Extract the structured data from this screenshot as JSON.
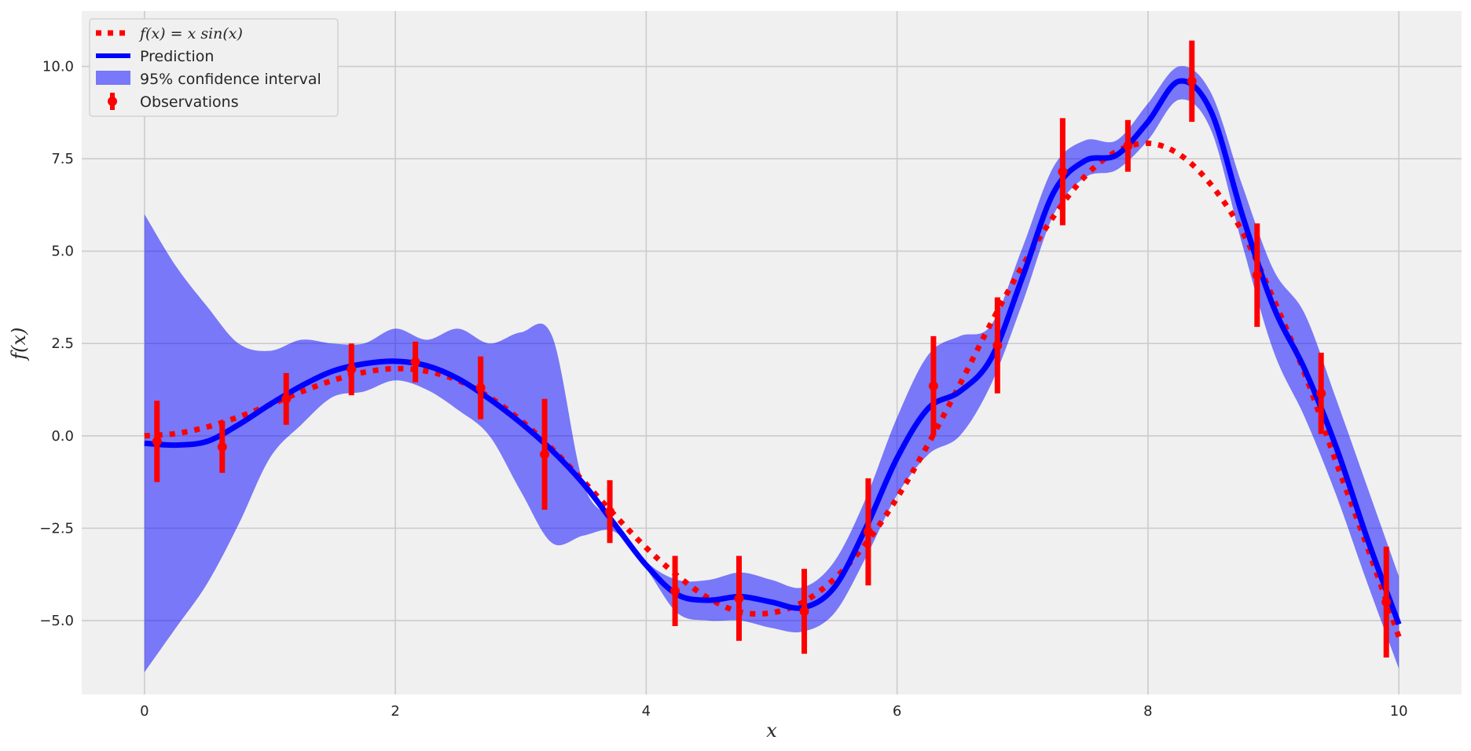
{
  "chart_data": {
    "type": "line",
    "xlabel": "x",
    "ylabel": "f(x)",
    "xlim": [
      -0.5,
      10.5
    ],
    "ylim": [
      -7.0,
      11.5
    ],
    "xticks": [
      0,
      2,
      4,
      6,
      8,
      10
    ],
    "xtick_labels": [
      "0",
      "2",
      "4",
      "6",
      "8",
      "10"
    ],
    "yticks": [
      -5.0,
      -2.5,
      0.0,
      2.5,
      5.0,
      7.5,
      10.0
    ],
    "ytick_labels": [
      "−5.0",
      "−2.5",
      "0.0",
      "2.5",
      "5.0",
      "7.5",
      "10.0"
    ],
    "grid": true,
    "legend_position": "top-left",
    "colors": {
      "background": "#f0f0f0",
      "grid": "#cbcbcb",
      "true_function": "#ff0000",
      "prediction": "#0000ff",
      "confidence_fill": "#0000ff",
      "observations": "#ff0000"
    },
    "series": [
      {
        "name": "f(x) = x sin(x)",
        "legend_label": "f(x) = x sin(x)",
        "kind": "dotted-line",
        "x": [
          0.0,
          0.25,
          0.5,
          0.75,
          1.0,
          1.25,
          1.5,
          1.75,
          2.0,
          2.25,
          2.5,
          2.75,
          3.0,
          3.25,
          3.5,
          3.75,
          4.0,
          4.25,
          4.5,
          4.75,
          5.0,
          5.25,
          5.5,
          5.75,
          6.0,
          6.25,
          6.5,
          6.75,
          7.0,
          7.25,
          7.5,
          7.75,
          8.0,
          8.25,
          8.5,
          8.75,
          9.0,
          9.25,
          9.5,
          9.75,
          10.0
        ],
        "y": [
          0.0,
          0.06,
          0.24,
          0.51,
          0.84,
          1.19,
          1.5,
          1.72,
          1.82,
          1.75,
          1.5,
          1.05,
          0.42,
          -0.35,
          -1.23,
          -2.15,
          -3.03,
          -3.79,
          -4.4,
          -4.77,
          -4.79,
          -4.5,
          -3.87,
          -2.92,
          -1.68,
          -0.21,
          1.39,
          3.06,
          4.6,
          5.95,
          7.03,
          7.7,
          7.92,
          7.62,
          6.81,
          5.54,
          3.71,
          1.68,
          -0.71,
          -3.02,
          -5.44
        ]
      },
      {
        "name": "Prediction",
        "legend_label": "Prediction",
        "kind": "line",
        "x": [
          0.0,
          0.25,
          0.5,
          0.75,
          1.0,
          1.25,
          1.5,
          1.75,
          2.0,
          2.25,
          2.5,
          2.75,
          3.0,
          3.25,
          3.5,
          3.75,
          4.0,
          4.25,
          4.5,
          4.75,
          5.0,
          5.25,
          5.5,
          5.75,
          6.0,
          6.25,
          6.5,
          6.75,
          7.0,
          7.25,
          7.5,
          7.75,
          8.0,
          8.25,
          8.5,
          8.75,
          9.0,
          9.25,
          9.5,
          9.75,
          10.0
        ],
        "y": [
          -0.2,
          -0.25,
          -0.15,
          0.3,
          0.85,
          1.35,
          1.75,
          1.95,
          2.02,
          1.9,
          1.55,
          1.0,
          0.35,
          -0.4,
          -1.3,
          -2.4,
          -3.5,
          -4.3,
          -4.45,
          -4.35,
          -4.5,
          -4.65,
          -4.1,
          -2.5,
          -0.6,
          0.75,
          1.2,
          2.1,
          4.3,
          6.6,
          7.45,
          7.6,
          8.5,
          9.6,
          8.8,
          6.0,
          3.5,
          1.8,
          -0.3,
          -2.8,
          -5.1
        ]
      }
    ],
    "confidence_interval": {
      "name": "95% confidence interval",
      "legend_label": "95% confidence interval",
      "x": [
        0.0,
        0.25,
        0.5,
        0.75,
        1.0,
        1.25,
        1.5,
        1.75,
        2.0,
        2.25,
        2.5,
        2.75,
        3.0,
        3.25,
        3.5,
        3.75,
        4.0,
        4.25,
        4.5,
        4.75,
        5.0,
        5.25,
        5.5,
        5.75,
        6.0,
        6.25,
        6.5,
        6.75,
        7.0,
        7.25,
        7.5,
        7.75,
        8.0,
        8.25,
        8.5,
        8.75,
        9.0,
        9.25,
        9.5,
        9.75,
        10.0
      ],
      "lower": [
        -6.4,
        -5.2,
        -4.0,
        -2.4,
        -0.6,
        0.3,
        1.05,
        1.2,
        1.5,
        1.25,
        0.7,
        0.0,
        -1.5,
        -2.9,
        -2.7,
        -2.6,
        -3.6,
        -4.8,
        -5.0,
        -5.0,
        -5.2,
        -5.3,
        -4.8,
        -3.3,
        -1.6,
        -0.5,
        0.0,
        1.4,
        3.6,
        6.0,
        7.0,
        7.2,
        8.0,
        9.1,
        8.3,
        5.2,
        2.3,
        0.5,
        -1.6,
        -4.0,
        -6.3
      ]
    },
    "confidence_upper": [
      6.0,
      4.6,
      3.5,
      2.5,
      2.3,
      2.6,
      2.5,
      2.5,
      2.9,
      2.6,
      2.9,
      2.5,
      2.8,
      2.7,
      -1.3,
      -2.3,
      -3.4,
      -3.9,
      -3.9,
      -3.7,
      -3.9,
      -4.1,
      -3.4,
      -1.7,
      0.5,
      2.2,
      2.7,
      3.0,
      5.1,
      7.3,
      8.0,
      8.0,
      9.0,
      10.0,
      9.3,
      6.8,
      4.5,
      3.3,
      1.0,
      -1.4,
      -3.8
    ],
    "observations": {
      "name": "Observations",
      "legend_label": "Observations",
      "x": [
        0.1,
        0.62,
        1.13,
        1.65,
        2.16,
        2.68,
        3.19,
        3.71,
        4.23,
        4.74,
        5.26,
        5.77,
        6.29,
        6.8,
        7.32,
        7.84,
        8.35,
        8.87,
        9.38,
        9.9
      ],
      "y": [
        -0.15,
        -0.3,
        1.0,
        1.8,
        2.0,
        1.3,
        -0.5,
        -2.05,
        -4.2,
        -4.4,
        -4.75,
        -2.6,
        1.35,
        2.45,
        7.15,
        7.85,
        9.6,
        4.35,
        1.15,
        -4.5
      ],
      "yerr": [
        1.1,
        0.7,
        0.7,
        0.7,
        0.55,
        0.85,
        1.5,
        0.85,
        0.95,
        1.15,
        1.15,
        1.45,
        1.35,
        1.3,
        1.45,
        0.7,
        1.1,
        1.4,
        1.1,
        1.5
      ]
    }
  }
}
